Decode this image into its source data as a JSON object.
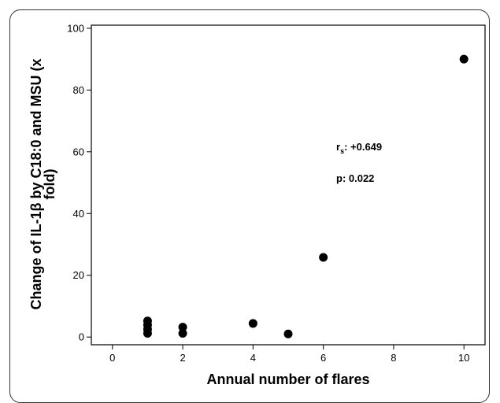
{
  "chart_data": {
    "type": "scatter",
    "title": "",
    "xlabel": "Annual number of flares",
    "ylabel_line1": "Change of IL-1β by C18:0 and MSU (x",
    "ylabel_line2": "fold)",
    "xlim": [
      -0.6,
      10.6
    ],
    "ylim": [
      -2.5,
      101
    ],
    "xticks": [
      0,
      2,
      4,
      6,
      8,
      10
    ],
    "yticks": [
      0,
      20,
      40,
      60,
      80,
      100
    ],
    "xtick_labels": [
      "0",
      "2",
      "4",
      "6",
      "8",
      "10"
    ],
    "ytick_labels": [
      "0",
      "20",
      "40",
      "60",
      "80",
      "100"
    ],
    "points": [
      {
        "x": 1,
        "y": 5.2
      },
      {
        "x": 1,
        "y": 3.9
      },
      {
        "x": 1,
        "y": 2.5
      },
      {
        "x": 1,
        "y": 1.2
      },
      {
        "x": 2,
        "y": 3.2
      },
      {
        "x": 2,
        "y": 1.2
      },
      {
        "x": 4,
        "y": 4.4
      },
      {
        "x": 5,
        "y": 1.0
      },
      {
        "x": 6,
        "y": 25.8
      },
      {
        "x": 10,
        "y": 90.0
      }
    ],
    "annotations": {
      "rs_main": "r",
      "rs_sub": "s",
      "rs_value": ": +0.649",
      "p_text": "p: 0.022"
    },
    "grid": false,
    "legend": "none",
    "marker_color": "#000000"
  }
}
